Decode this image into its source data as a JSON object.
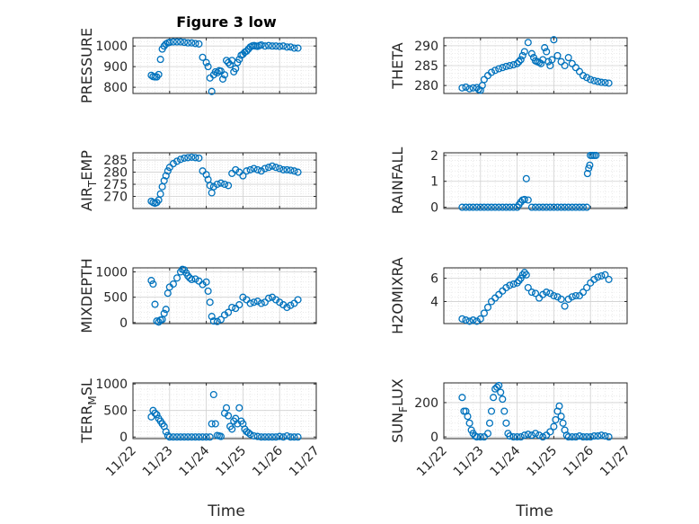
{
  "chart_data": [
    {
      "type": "scatter",
      "title": "Figure 3 low",
      "ylabel": "PRESSURE",
      "xlim": [
        0,
        5
      ],
      "ylim": [
        770,
        1040
      ],
      "yticks": [
        800,
        900,
        1000
      ],
      "yticklabels": [
        "800",
        "900",
        "1000"
      ],
      "x": [
        0.5,
        0.55,
        0.6,
        0.65,
        0.7,
        0.75,
        0.8,
        0.85,
        0.9,
        0.95,
        1.0,
        1.1,
        1.2,
        1.3,
        1.4,
        1.5,
        1.6,
        1.7,
        1.8,
        1.9,
        2.0,
        2.05,
        2.1,
        2.15,
        2.2,
        2.25,
        2.3,
        2.35,
        2.4,
        2.45,
        2.5,
        2.55,
        2.6,
        2.65,
        2.7,
        2.75,
        2.8,
        2.85,
        2.9,
        2.95,
        3.0,
        3.05,
        3.1,
        3.15,
        3.2,
        3.25,
        3.3,
        3.35,
        3.4,
        3.45,
        3.5,
        3.6,
        3.7,
        3.8,
        3.9,
        4.0,
        4.1,
        4.2,
        4.3,
        4.4,
        4.5
      ],
      "y": [
        858,
        852,
        850,
        850,
        862,
        935,
        985,
        1000,
        1010,
        1015,
        1018,
        1020,
        1020,
        1020,
        1018,
        1015,
        1015,
        1012,
        1010,
        945,
        920,
        900,
        845,
        780,
        860,
        875,
        870,
        880,
        878,
        840,
        860,
        930,
        920,
        910,
        930,
        875,
        890,
        920,
        935,
        955,
        960,
        970,
        975,
        985,
        995,
        1000,
        1002,
        1000,
        998,
        1002,
        1005,
        1000,
        1002,
        1000,
        1000,
        998,
        1000,
        995,
        995,
        990,
        990
      ]
    },
    {
      "type": "scatter",
      "title": "",
      "ylabel": "THETA",
      "xlim": [
        0,
        5
      ],
      "ylim": [
        278,
        292
      ],
      "yticks": [
        280,
        285,
        290
      ],
      "yticklabels": [
        "280",
        "285",
        "290"
      ],
      "x": [
        0.5,
        0.6,
        0.7,
        0.8,
        0.9,
        0.95,
        1.0,
        1.05,
        1.1,
        1.2,
        1.3,
        1.4,
        1.5,
        1.6,
        1.7,
        1.8,
        1.9,
        2.0,
        2.05,
        2.1,
        2.15,
        2.2,
        2.3,
        2.4,
        2.45,
        2.5,
        2.55,
        2.6,
        2.65,
        2.7,
        2.75,
        2.8,
        2.85,
        2.9,
        2.95,
        3.0,
        3.1,
        3.2,
        3.3,
        3.4,
        3.5,
        3.6,
        3.7,
        3.8,
        3.9,
        4.0,
        4.1,
        4.2,
        4.3,
        4.4,
        4.5
      ],
      "y": [
        279.4,
        279.6,
        279.2,
        279.4,
        279.5,
        279.0,
        278.8,
        280.0,
        281.5,
        282.5,
        283.3,
        283.8,
        284.2,
        284.5,
        284.8,
        285.0,
        285.2,
        285.5,
        286.0,
        286.5,
        287.5,
        288.5,
        290.8,
        288.0,
        287.0,
        286.2,
        286.0,
        285.8,
        285.5,
        286.5,
        289.5,
        288.5,
        286.0,
        285.0,
        286.5,
        291.5,
        287.5,
        286.0,
        285.0,
        287.0,
        285.5,
        284.5,
        283.5,
        282.5,
        282.0,
        281.5,
        281.2,
        281.0,
        280.8,
        280.7,
        280.6
      ]
    },
    {
      "type": "scatter",
      "title": "",
      "ylabel": "AIR_TEMP",
      "xlim": [
        0,
        5
      ],
      "ylim": [
        265,
        288
      ],
      "yticks": [
        270,
        275,
        280,
        285
      ],
      "yticklabels": [
        "270",
        "275",
        "280",
        "285"
      ],
      "x": [
        0.5,
        0.55,
        0.6,
        0.65,
        0.7,
        0.75,
        0.8,
        0.85,
        0.9,
        0.95,
        1.0,
        1.1,
        1.2,
        1.3,
        1.4,
        1.5,
        1.6,
        1.7,
        1.8,
        1.9,
        2.0,
        2.05,
        2.1,
        2.15,
        2.2,
        2.3,
        2.4,
        2.5,
        2.6,
        2.7,
        2.8,
        2.9,
        3.0,
        3.1,
        3.2,
        3.3,
        3.4,
        3.5,
        3.6,
        3.7,
        3.8,
        3.9,
        4.0,
        4.1,
        4.2,
        4.3,
        4.4,
        4.5
      ],
      "y": [
        268.0,
        267.5,
        267.2,
        267.5,
        268.5,
        271.0,
        274.0,
        276.5,
        278.5,
        280.5,
        282.0,
        283.5,
        284.5,
        285.3,
        285.8,
        286.0,
        286.2,
        286.0,
        285.8,
        280.5,
        279.0,
        277.0,
        274.5,
        271.5,
        274.0,
        275.0,
        275.5,
        275.0,
        274.5,
        279.5,
        281.0,
        280.0,
        278.5,
        280.5,
        281.0,
        281.5,
        281.0,
        280.5,
        281.5,
        282.0,
        282.5,
        282.0,
        281.5,
        281.0,
        281.0,
        280.8,
        280.5,
        280.0
      ]
    },
    {
      "type": "scatter",
      "title": "",
      "ylabel": "RAINFALL",
      "xlim": [
        0,
        5
      ],
      "ylim": [
        -0.05,
        2.1
      ],
      "yticks": [
        0,
        1,
        2
      ],
      "yticklabels": [
        "0",
        "1",
        "2"
      ],
      "x": [
        0.5,
        0.6,
        0.7,
        0.8,
        0.9,
        1.0,
        1.1,
        1.2,
        1.3,
        1.4,
        1.5,
        1.6,
        1.7,
        1.8,
        1.9,
        2.0,
        2.05,
        2.1,
        2.15,
        2.2,
        2.25,
        2.3,
        2.4,
        2.5,
        2.6,
        2.7,
        2.8,
        2.9,
        3.0,
        3.1,
        3.2,
        3.3,
        3.4,
        3.5,
        3.6,
        3.7,
        3.8,
        3.9,
        3.92,
        3.95,
        3.98,
        4.0,
        4.05,
        4.1,
        4.15
      ],
      "y": [
        0,
        0,
        0,
        0,
        0,
        0,
        0,
        0,
        0,
        0,
        0,
        0,
        0,
        0,
        0,
        0,
        0.1,
        0.2,
        0.28,
        0.3,
        1.1,
        0.28,
        0,
        0,
        0,
        0,
        0,
        0,
        0,
        0,
        0,
        0,
        0,
        0,
        0,
        0,
        0,
        0,
        1.3,
        1.5,
        1.62,
        2.0,
        2.0,
        2.0,
        2.0
      ]
    },
    {
      "type": "scatter",
      "title": "",
      "ylabel": "MIXDEPTH",
      "xlim": [
        0,
        5
      ],
      "ylim": [
        -20,
        1080
      ],
      "yticks": [
        0,
        500,
        1000
      ],
      "yticklabels": [
        "0",
        "500",
        "1000"
      ],
      "x": [
        0.5,
        0.55,
        0.6,
        0.65,
        0.7,
        0.75,
        0.8,
        0.85,
        0.9,
        0.95,
        1.0,
        1.1,
        1.2,
        1.3,
        1.35,
        1.4,
        1.45,
        1.5,
        1.55,
        1.6,
        1.7,
        1.8,
        1.9,
        2.0,
        2.05,
        2.1,
        2.15,
        2.2,
        2.3,
        2.4,
        2.5,
        2.6,
        2.7,
        2.8,
        2.9,
        3.0,
        3.1,
        3.2,
        3.3,
        3.4,
        3.5,
        3.6,
        3.7,
        3.8,
        3.9,
        4.0,
        4.1,
        4.2,
        4.3,
        4.4,
        4.5
      ],
      "y": [
        830,
        760,
        360,
        30,
        10,
        50,
        60,
        180,
        260,
        580,
        700,
        760,
        880,
        1000,
        1050,
        1040,
        980,
        920,
        880,
        850,
        860,
        820,
        750,
        800,
        620,
        400,
        120,
        30,
        20,
        60,
        150,
        200,
        300,
        280,
        350,
        500,
        450,
        380,
        400,
        420,
        380,
        400,
        480,
        500,
        450,
        400,
        350,
        300,
        340,
        380,
        450
      ]
    },
    {
      "type": "scatter",
      "title": "",
      "ylabel": "H2OMIXRA",
      "xlim": [
        0,
        5
      ],
      "ylim": [
        2.1,
        6.9
      ],
      "yticks": [
        4,
        6
      ],
      "yticklabels": [
        "4",
        "6"
      ],
      "x": [
        0.5,
        0.6,
        0.7,
        0.8,
        0.9,
        1.0,
        1.1,
        1.2,
        1.3,
        1.4,
        1.5,
        1.6,
        1.7,
        1.8,
        1.9,
        2.0,
        2.05,
        2.1,
        2.15,
        2.2,
        2.25,
        2.3,
        2.4,
        2.5,
        2.6,
        2.7,
        2.8,
        2.9,
        3.0,
        3.1,
        3.2,
        3.3,
        3.4,
        3.5,
        3.6,
        3.7,
        3.8,
        3.9,
        4.0,
        4.1,
        4.2,
        4.3,
        4.4,
        4.5
      ],
      "y": [
        2.5,
        2.4,
        2.3,
        2.4,
        2.3,
        2.5,
        3.0,
        3.5,
        4.0,
        4.3,
        4.6,
        4.9,
        5.2,
        5.4,
        5.5,
        5.6,
        5.8,
        6.0,
        6.3,
        6.5,
        6.3,
        5.2,
        4.8,
        4.7,
        4.3,
        4.6,
        4.8,
        4.7,
        4.5,
        4.4,
        4.2,
        3.6,
        4.2,
        4.4,
        4.5,
        4.5,
        4.8,
        5.2,
        5.6,
        5.9,
        6.1,
        6.2,
        6.3,
        5.9
      ]
    },
    {
      "type": "scatter",
      "title": "",
      "ylabel": "TERR_MSL",
      "xlim": [
        0,
        5
      ],
      "ylim": [
        -30,
        1020
      ],
      "yticks": [
        0,
        500,
        1000
      ],
      "yticklabels": [
        "0",
        "500",
        "1000"
      ],
      "x": [
        0.5,
        0.55,
        0.6,
        0.65,
        0.7,
        0.75,
        0.8,
        0.85,
        0.9,
        0.95,
        1.0,
        1.1,
        1.2,
        1.3,
        1.4,
        1.5,
        1.6,
        1.7,
        1.8,
        1.9,
        2.0,
        2.1,
        2.15,
        2.2,
        2.25,
        2.3,
        2.35,
        2.4,
        2.5,
        2.55,
        2.6,
        2.65,
        2.7,
        2.75,
        2.8,
        2.85,
        2.9,
        2.95,
        3.0,
        3.05,
        3.1,
        3.15,
        3.2,
        3.3,
        3.4,
        3.5,
        3.6,
        3.7,
        3.8,
        3.9,
        4.0,
        4.1,
        4.2,
        4.3,
        4.4,
        4.5
      ],
      "y": [
        380,
        500,
        450,
        420,
        350,
        300,
        250,
        200,
        100,
        30,
        0,
        0,
        0,
        0,
        0,
        0,
        0,
        0,
        0,
        0,
        0,
        0,
        250,
        800,
        250,
        30,
        20,
        10,
        450,
        550,
        400,
        200,
        150,
        300,
        350,
        250,
        550,
        300,
        250,
        150,
        100,
        80,
        50,
        20,
        10,
        0,
        0,
        0,
        0,
        0,
        10,
        0,
        20,
        0,
        0,
        0
      ]
    },
    {
      "type": "scatter",
      "title": "",
      "ylabel": "SUN_FLUX",
      "xlim": [
        0,
        5
      ],
      "ylim": [
        -10,
        315
      ],
      "yticks": [
        0,
        200
      ],
      "yticklabels": [
        "0",
        "200"
      ],
      "x": [
        0.5,
        0.55,
        0.6,
        0.65,
        0.7,
        0.75,
        0.8,
        0.85,
        0.9,
        1.0,
        1.1,
        1.2,
        1.25,
        1.3,
        1.35,
        1.4,
        1.45,
        1.5,
        1.55,
        1.6,
        1.65,
        1.7,
        1.75,
        1.8,
        1.9,
        2.0,
        2.1,
        2.2,
        2.3,
        2.4,
        2.5,
        2.6,
        2.7,
        2.8,
        2.9,
        3.0,
        3.05,
        3.1,
        3.15,
        3.2,
        3.25,
        3.3,
        3.35,
        3.4,
        3.5,
        3.6,
        3.7,
        3.8,
        3.9,
        4.0,
        4.1,
        4.2,
        4.3,
        4.4,
        4.5
      ],
      "y": [
        230,
        150,
        150,
        120,
        80,
        40,
        20,
        5,
        0,
        0,
        0,
        20,
        80,
        150,
        230,
        280,
        290,
        300,
        260,
        220,
        150,
        80,
        20,
        5,
        0,
        0,
        0,
        10,
        15,
        10,
        20,
        10,
        0,
        10,
        30,
        60,
        100,
        150,
        180,
        120,
        80,
        40,
        10,
        0,
        0,
        0,
        5,
        0,
        0,
        0,
        5,
        5,
        10,
        5,
        0
      ]
    }
  ],
  "x_axis": {
    "tick_labels": [
      "11/22",
      "11/23",
      "11/24",
      "11/25",
      "11/26",
      "11/27"
    ],
    "xlabel": "Time"
  },
  "marker_color": "#0072bd"
}
